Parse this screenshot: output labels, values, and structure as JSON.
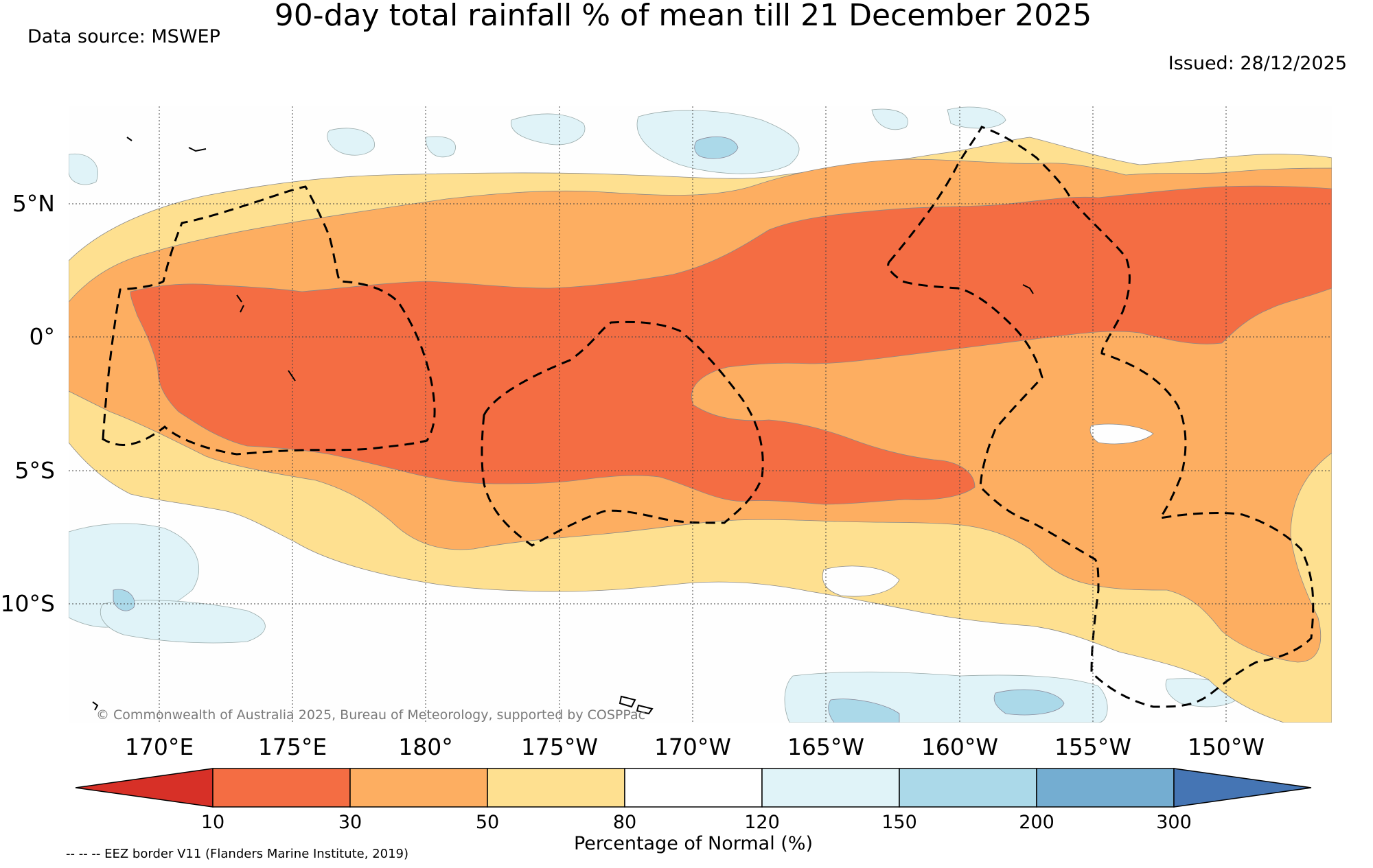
{
  "title": "90-day total rainfall % of mean till 21 December 2025",
  "data_source": "Data source: MSWEP",
  "issued": "Issued: 28/12/2025",
  "copyright": "© Commonwealth of Australia 2025, Bureau of Meteorology, supported by COSPPac",
  "eez_note": "-- -- -- EEZ border V11 (Flanders Marine Institute, 2019)",
  "map": {
    "lon_labels": [
      "170°E",
      "175°E",
      "180°",
      "175°W",
      "170°W",
      "165°W",
      "160°W",
      "155°W",
      "150°W"
    ],
    "lat_labels": [
      "5°N",
      "0°",
      "5°S",
      "10°S"
    ]
  },
  "colorbar": {
    "title": "Percentage of Normal (%)",
    "ticks": [
      "10",
      "30",
      "50",
      "80",
      "120",
      "150",
      "200",
      "300"
    ],
    "colors": [
      "#d73027",
      "#f46d43",
      "#fdae61",
      "#fee090",
      "#ffffff",
      "#e0f3f8",
      "#abd9e9",
      "#74add1",
      "#4575b4"
    ]
  },
  "palette": {
    "dry_extreme": "#d73027",
    "very_dry": "#f46d43",
    "dry": "#fdae61",
    "below_normal": "#fee090",
    "normal": "#ffffff",
    "above_normal": "#e0f3f8",
    "wet": "#abd9e9",
    "very_wet": "#74add1"
  }
}
